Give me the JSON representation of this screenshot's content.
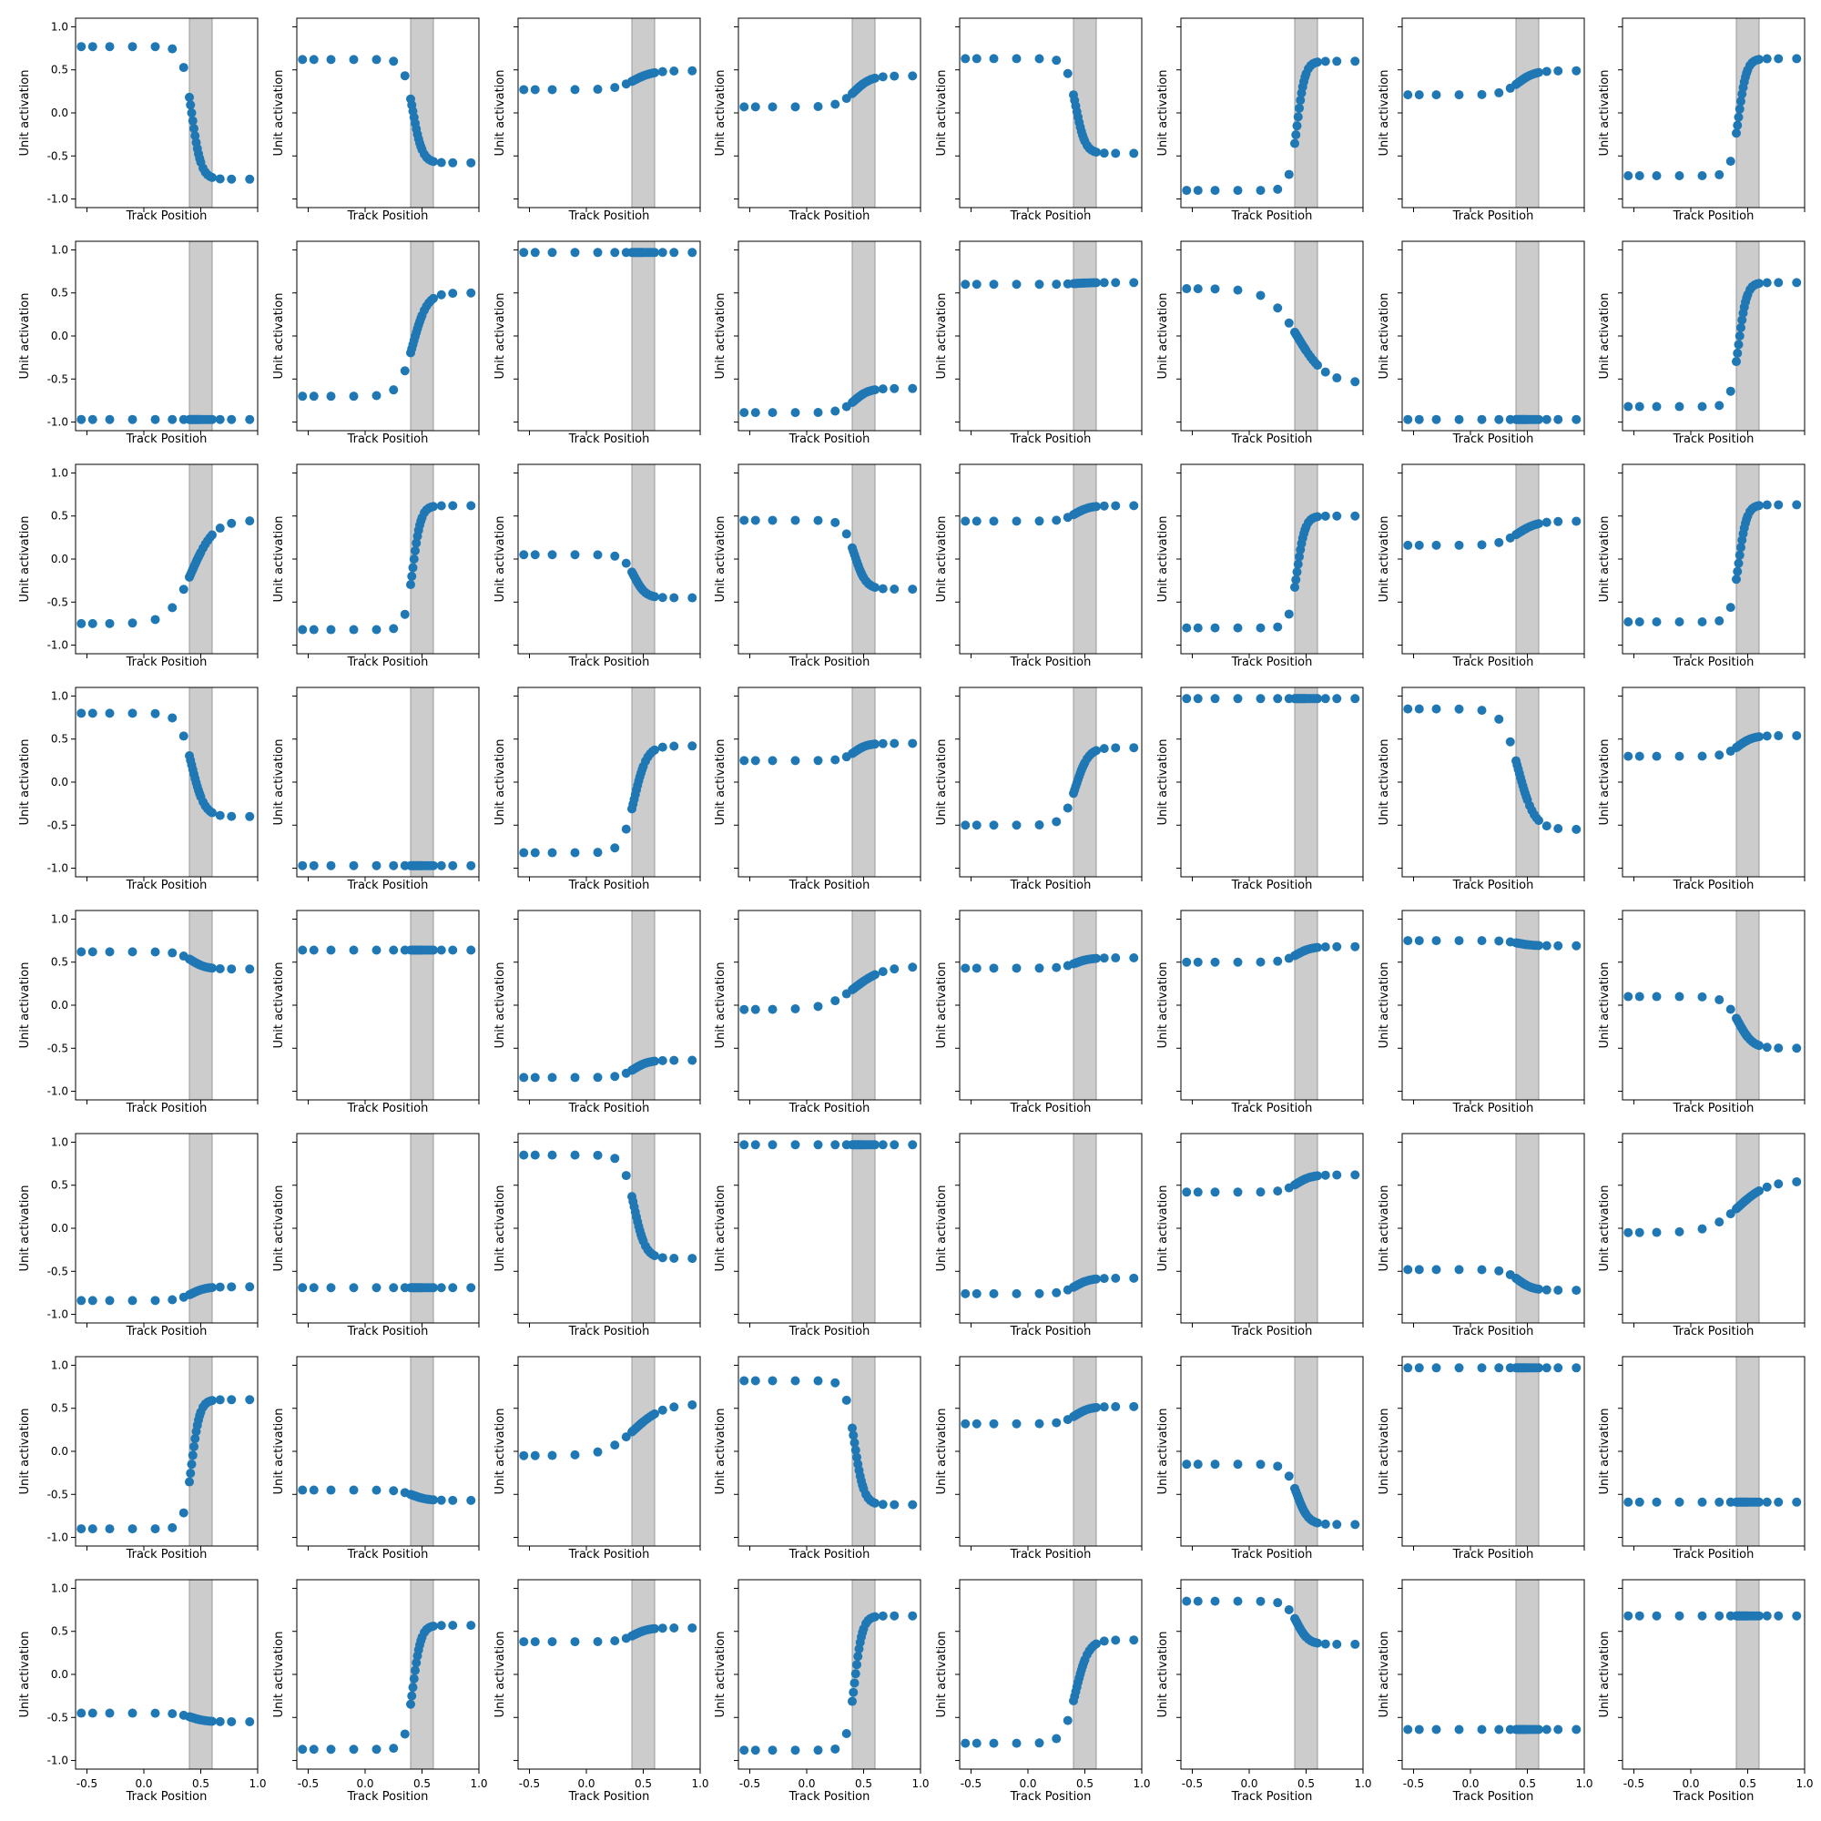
{
  "figure": {
    "rows": 8,
    "cols": 8,
    "xlabel": "Track Position",
    "ylabel": "Unit activation",
    "x_ticks": [
      "-0.5",
      "0.0",
      "0.5",
      "1.0"
    ],
    "y_ticks": [
      "-1.0",
      "-0.5",
      "0.0",
      "0.5",
      "1.0"
    ],
    "point_color": "#1f77b4",
    "band_color": "#cccccc"
  },
  "chart_data": {
    "type": "scatter",
    "panel_count": 64,
    "layout": "8 rows x 8 columns, shared axes",
    "xlabel": "Track Position",
    "ylabel": "Unit activation",
    "xlim": [
      -0.6,
      1.0
    ],
    "ylim": [
      -1.1,
      1.1
    ],
    "x_ticks": [
      -0.5,
      0.0,
      0.5,
      1.0
    ],
    "y_ticks": [
      -1.0,
      -0.5,
      0.0,
      0.5,
      1.0
    ],
    "shaded_band": {
      "x": [
        0.4,
        0.6
      ],
      "color": "#cccccc"
    },
    "x": [
      -0.55,
      -0.45,
      -0.3,
      -0.1,
      0.1,
      0.25,
      0.35,
      0.4,
      0.41,
      0.42,
      0.43,
      0.44,
      0.45,
      0.46,
      0.47,
      0.48,
      0.49,
      0.5,
      0.52,
      0.54,
      0.56,
      0.58,
      0.6,
      0.67,
      0.77,
      0.93
    ],
    "panels": [
      {
        "a": -1.0,
        "m": 0.77,
        "k": 12,
        "d": 1.0,
        "c": 0.0,
        "b": 0.0,
        "f": 0.0,
        "w": 0.0
      },
      {
        "a": -1.0,
        "m": 0.6,
        "k": 12,
        "d": 1.0,
        "c": 0.02,
        "b": 0.0,
        "f": 0.0,
        "w": 0.0
      },
      {
        "a": 1.0,
        "m": 0.11,
        "k": 6,
        "d": 0.4,
        "c": 0.38,
        "b": 0.0,
        "f": 0.0,
        "w": 0.0
      },
      {
        "a": 1.0,
        "m": 0.18,
        "k": 7,
        "d": 0.4,
        "c": 0.25,
        "b": 0.0,
        "f": 0.0,
        "w": 0.0
      },
      {
        "a": -1.0,
        "m": 0.55,
        "k": 12,
        "d": 1.0,
        "c": 0.08,
        "b": 0.0,
        "f": 0.0,
        "w": 0.0
      },
      {
        "a": 1.0,
        "m": 0.75,
        "k": 14,
        "d": 1.0,
        "c": -0.15,
        "b": 0.0,
        "f": 0.0,
        "w": 0.0
      },
      {
        "a": 1.0,
        "m": 0.14,
        "k": 7,
        "d": 0.4,
        "c": 0.35,
        "b": 0.0,
        "f": 0.0,
        "w": 0.0
      },
      {
        "a": 1.0,
        "m": 0.68,
        "k": 14,
        "d": 1.0,
        "c": -0.05,
        "b": 0.0,
        "f": 0.0,
        "w": 0.0
      },
      {
        "a": -1.0,
        "m": 0.0,
        "k": 14,
        "d": 0.3,
        "c": -0.97,
        "b": 0.0,
        "f": 0.0,
        "w": 0.0
      },
      {
        "a": 1.0,
        "m": 0.6,
        "k": 8,
        "d": 1.0,
        "c": -0.1,
        "b": 0.0,
        "f": 0.0,
        "w": 0.0
      },
      {
        "a": 1.0,
        "m": 0.0,
        "k": 14,
        "d": 0.3,
        "c": 0.97,
        "b": 0.0,
        "f": 0.0,
        "w": 0.0
      },
      {
        "a": 1.0,
        "m": 0.14,
        "k": 8,
        "d": 0.4,
        "c": -0.75,
        "b": 0.0,
        "f": 0.0,
        "w": 0.0
      },
      {
        "a": 1.0,
        "m": 0.01,
        "k": 8,
        "d": 0.4,
        "c": 0.61,
        "b": 0.0,
        "f": 0.0,
        "w": 0.0
      },
      {
        "a": -1.0,
        "m": 0.55,
        "k": 4,
        "d": 0.3,
        "c": 0.0,
        "b": 0.0,
        "f": 0.0,
        "w": 0.0
      },
      {
        "a": -1.0,
        "m": 0.0,
        "k": 14,
        "d": 0.3,
        "c": -0.97,
        "b": 0.0,
        "f": 0.0,
        "w": 0.0
      },
      {
        "a": 1.0,
        "m": 0.72,
        "k": 14,
        "d": 1.0,
        "c": -0.1,
        "b": 0.0,
        "f": 0.0,
        "w": 0.0
      },
      {
        "a": 1.0,
        "m": 0.6,
        "k": 5,
        "d": 1.0,
        "c": -0.15,
        "b": 0.0,
        "f": 0.0,
        "w": 0.0
      },
      {
        "a": 1.0,
        "m": 0.72,
        "k": 14,
        "d": 1.0,
        "c": -0.1,
        "b": 0.0,
        "f": 0.0,
        "w": 0.0
      },
      {
        "a": -1.0,
        "m": 0.25,
        "k": 10,
        "d": 0.4,
        "c": -0.2,
        "b": 0.0,
        "f": 0.0,
        "w": 0.0
      },
      {
        "a": -1.0,
        "m": 0.4,
        "k": 10,
        "d": 0.4,
        "c": 0.05,
        "b": 0.0,
        "f": 0.0,
        "w": 0.0
      },
      {
        "a": 1.0,
        "m": 0.09,
        "k": 8,
        "d": 0.4,
        "c": 0.53,
        "b": 0.0,
        "f": 0.0,
        "w": 0.0
      },
      {
        "a": 1.0,
        "m": 0.65,
        "k": 14,
        "d": 1.0,
        "c": -0.15,
        "b": 0.0,
        "f": 0.0,
        "w": 0.0
      },
      {
        "a": 1.0,
        "m": 0.14,
        "k": 6,
        "d": 0.4,
        "c": 0.3,
        "b": 0.0,
        "f": 0.0,
        "w": 0.0
      },
      {
        "a": 1.0,
        "m": 0.68,
        "k": 14,
        "d": 1.0,
        "c": -0.05,
        "b": 0.0,
        "f": 0.0,
        "w": 0.0
      },
      {
        "a": -1.0,
        "m": 0.6,
        "k": 9,
        "d": 1.0,
        "c": 0.2,
        "b": 0.0,
        "f": 0.0,
        "w": 0.0
      },
      {
        "a": -1.0,
        "m": 0.0,
        "k": 14,
        "d": 0.3,
        "c": -0.97,
        "b": 0.0,
        "f": 0.0,
        "w": 0.0
      },
      {
        "a": 1.0,
        "m": 0.62,
        "k": 9,
        "d": 1.0,
        "c": -0.2,
        "b": 0.0,
        "f": 0.0,
        "w": 0.0
      },
      {
        "a": 1.0,
        "m": 0.1,
        "k": 9,
        "d": 0.4,
        "c": 0.35,
        "b": 0.0,
        "f": 0.0,
        "w": 0.0
      },
      {
        "a": 1.0,
        "m": 0.45,
        "k": 9,
        "d": 0.4,
        "c": -0.05,
        "b": 0.0,
        "f": 0.0,
        "w": 0.0
      },
      {
        "a": 1.0,
        "m": 0.0,
        "k": 14,
        "d": 0.3,
        "c": 0.97,
        "b": 0.0,
        "f": 0.0,
        "w": 0.0
      },
      {
        "a": -1.0,
        "m": 0.7,
        "k": 7,
        "d": 1.0,
        "c": 0.15,
        "b": 0.0,
        "f": 0.0,
        "w": 0.0
      },
      {
        "a": 1.0,
        "m": 0.12,
        "k": 8,
        "d": 0.4,
        "c": 0.42,
        "b": 0.0,
        "f": 0.0,
        "w": 0.0
      },
      {
        "a": -1.0,
        "m": 0.1,
        "k": 8,
        "d": 0.4,
        "c": 0.52,
        "b": 0.0,
        "f": 0.0,
        "w": 0.0
      },
      {
        "a": 1.0,
        "m": 0.0,
        "k": 8,
        "d": 0.4,
        "c": 0.64,
        "b": 0.0,
        "f": 0.0,
        "w": 0.0
      },
      {
        "a": 1.0,
        "m": 0.1,
        "k": 8,
        "d": 0.4,
        "c": -0.74,
        "b": 0.0,
        "f": 0.0,
        "w": 0.0
      },
      {
        "a": 1.0,
        "m": 0.25,
        "k": 4,
        "d": 0.3,
        "c": 0.2,
        "b": 0.0,
        "f": 0.0,
        "w": 0.0
      },
      {
        "a": 1.0,
        "m": 0.06,
        "k": 8,
        "d": 0.4,
        "c": 0.49,
        "b": 0.0,
        "f": 0.0,
        "w": 0.0
      },
      {
        "a": 1.0,
        "m": 0.09,
        "k": 8,
        "d": 0.4,
        "c": 0.59,
        "b": 0.0,
        "f": 0.0,
        "w": 0.0
      },
      {
        "a": -1.0,
        "m": 0.03,
        "k": 8,
        "d": 0.4,
        "c": 0.72,
        "b": 0.0,
        "f": 0.0,
        "w": 0.0
      },
      {
        "a": -1.0,
        "m": 0.3,
        "k": 8,
        "d": 0.4,
        "c": -0.2,
        "b": 0.0,
        "f": 0.0,
        "w": 0.0
      },
      {
        "a": 1.0,
        "m": 0.08,
        "k": 8,
        "d": 0.4,
        "c": -0.76,
        "b": 0.0,
        "f": 0.0,
        "w": 0.0
      },
      {
        "a": 1.0,
        "m": 0.0,
        "k": 8,
        "d": 0.4,
        "c": -0.69,
        "b": 0.0,
        "f": 0.0,
        "w": 0.0
      },
      {
        "a": -1.0,
        "m": 0.6,
        "k": 10,
        "d": 0.4,
        "c": 0.25,
        "b": 0.0,
        "f": 0.0,
        "w": 0.0
      },
      {
        "a": 1.0,
        "m": 0.0,
        "k": 14,
        "d": 0.3,
        "c": 0.97,
        "b": 0.0,
        "f": 0.0,
        "w": 0.0
      },
      {
        "a": 1.0,
        "m": 0.09,
        "k": 8,
        "d": 0.4,
        "c": -0.67,
        "b": 0.0,
        "f": 0.0,
        "w": 0.0
      },
      {
        "a": 1.0,
        "m": 0.1,
        "k": 8,
        "d": 0.4,
        "c": 0.52,
        "b": 0.0,
        "f": 0.0,
        "w": 0.0
      },
      {
        "a": -1.0,
        "m": 0.12,
        "k": 8,
        "d": 0.4,
        "c": -0.6,
        "b": 0.0,
        "f": 0.0,
        "w": 0.0
      },
      {
        "a": 1.0,
        "m": 0.3,
        "k": 4,
        "d": 0.3,
        "c": 0.25,
        "b": 0.0,
        "f": 0.0,
        "w": 0.0
      },
      {
        "a": 1.0,
        "m": 0.75,
        "k": 14,
        "d": 1.0,
        "c": -0.15,
        "b": 0.0,
        "f": 0.0,
        "w": 0.0
      },
      {
        "a": -1.0,
        "m": 0.06,
        "k": 8,
        "d": 0.4,
        "c": -0.51,
        "b": 0.0,
        "f": 0.0,
        "w": 0.0
      },
      {
        "a": 1.0,
        "m": 0.3,
        "k": 4,
        "d": 0.3,
        "c": 0.25,
        "b": 0.0,
        "f": 0.0,
        "w": 0.0
      },
      {
        "a": -1.0,
        "m": 0.72,
        "k": 12,
        "d": 1.0,
        "c": 0.1,
        "b": 0.0,
        "f": 0.0,
        "w": 0.0
      },
      {
        "a": 1.0,
        "m": 0.1,
        "k": 8,
        "d": 0.4,
        "c": 0.42,
        "b": 0.0,
        "f": 0.0,
        "w": 0.0
      },
      {
        "a": -1.0,
        "m": 0.35,
        "k": 10,
        "d": 0.4,
        "c": -0.5,
        "b": 0.0,
        "f": 0.0,
        "w": 0.0
      },
      {
        "a": 1.0,
        "m": 0.0,
        "k": 14,
        "d": 0.3,
        "c": 0.97,
        "b": 0.0,
        "f": 0.0,
        "w": 0.0
      },
      {
        "a": 1.0,
        "m": 0.0,
        "k": 8,
        "d": 0.4,
        "c": -0.59,
        "b": 0.0,
        "f": 0.0,
        "w": 0.0
      },
      {
        "a": -1.0,
        "m": 0.05,
        "k": 8,
        "d": 0.4,
        "c": -0.5,
        "b": 0.0,
        "f": 0.0,
        "w": 0.0
      },
      {
        "a": 1.0,
        "m": 0.72,
        "k": 14,
        "d": 1.0,
        "c": -0.15,
        "b": 0.0,
        "f": 0.0,
        "w": 0.0
      },
      {
        "a": 1.0,
        "m": 0.08,
        "k": 8,
        "d": 0.4,
        "c": 0.46,
        "b": 0.0,
        "f": 0.0,
        "w": 0.0
      },
      {
        "a": 1.0,
        "m": 0.78,
        "k": 14,
        "d": 1.0,
        "c": -0.1,
        "b": 0.0,
        "f": 0.0,
        "w": 0.0
      },
      {
        "a": 1.0,
        "m": 0.6,
        "k": 9,
        "d": 1.0,
        "c": -0.2,
        "b": 0.0,
        "f": 0.0,
        "w": 0.0
      },
      {
        "a": -1.0,
        "m": 0.25,
        "k": 10,
        "d": 0.4,
        "c": 0.6,
        "b": 0.0,
        "f": 0.0,
        "w": 0.0
      },
      {
        "a": 1.0,
        "m": 0.0,
        "k": 8,
        "d": 0.4,
        "c": -0.64,
        "b": 0.0,
        "f": 0.0,
        "w": 0.0
      },
      {
        "a": 1.0,
        "m": 0.0,
        "k": 8,
        "d": 0.4,
        "c": 0.68,
        "b": 0.0,
        "f": 0.0,
        "w": 0.0
      }
    ]
  }
}
